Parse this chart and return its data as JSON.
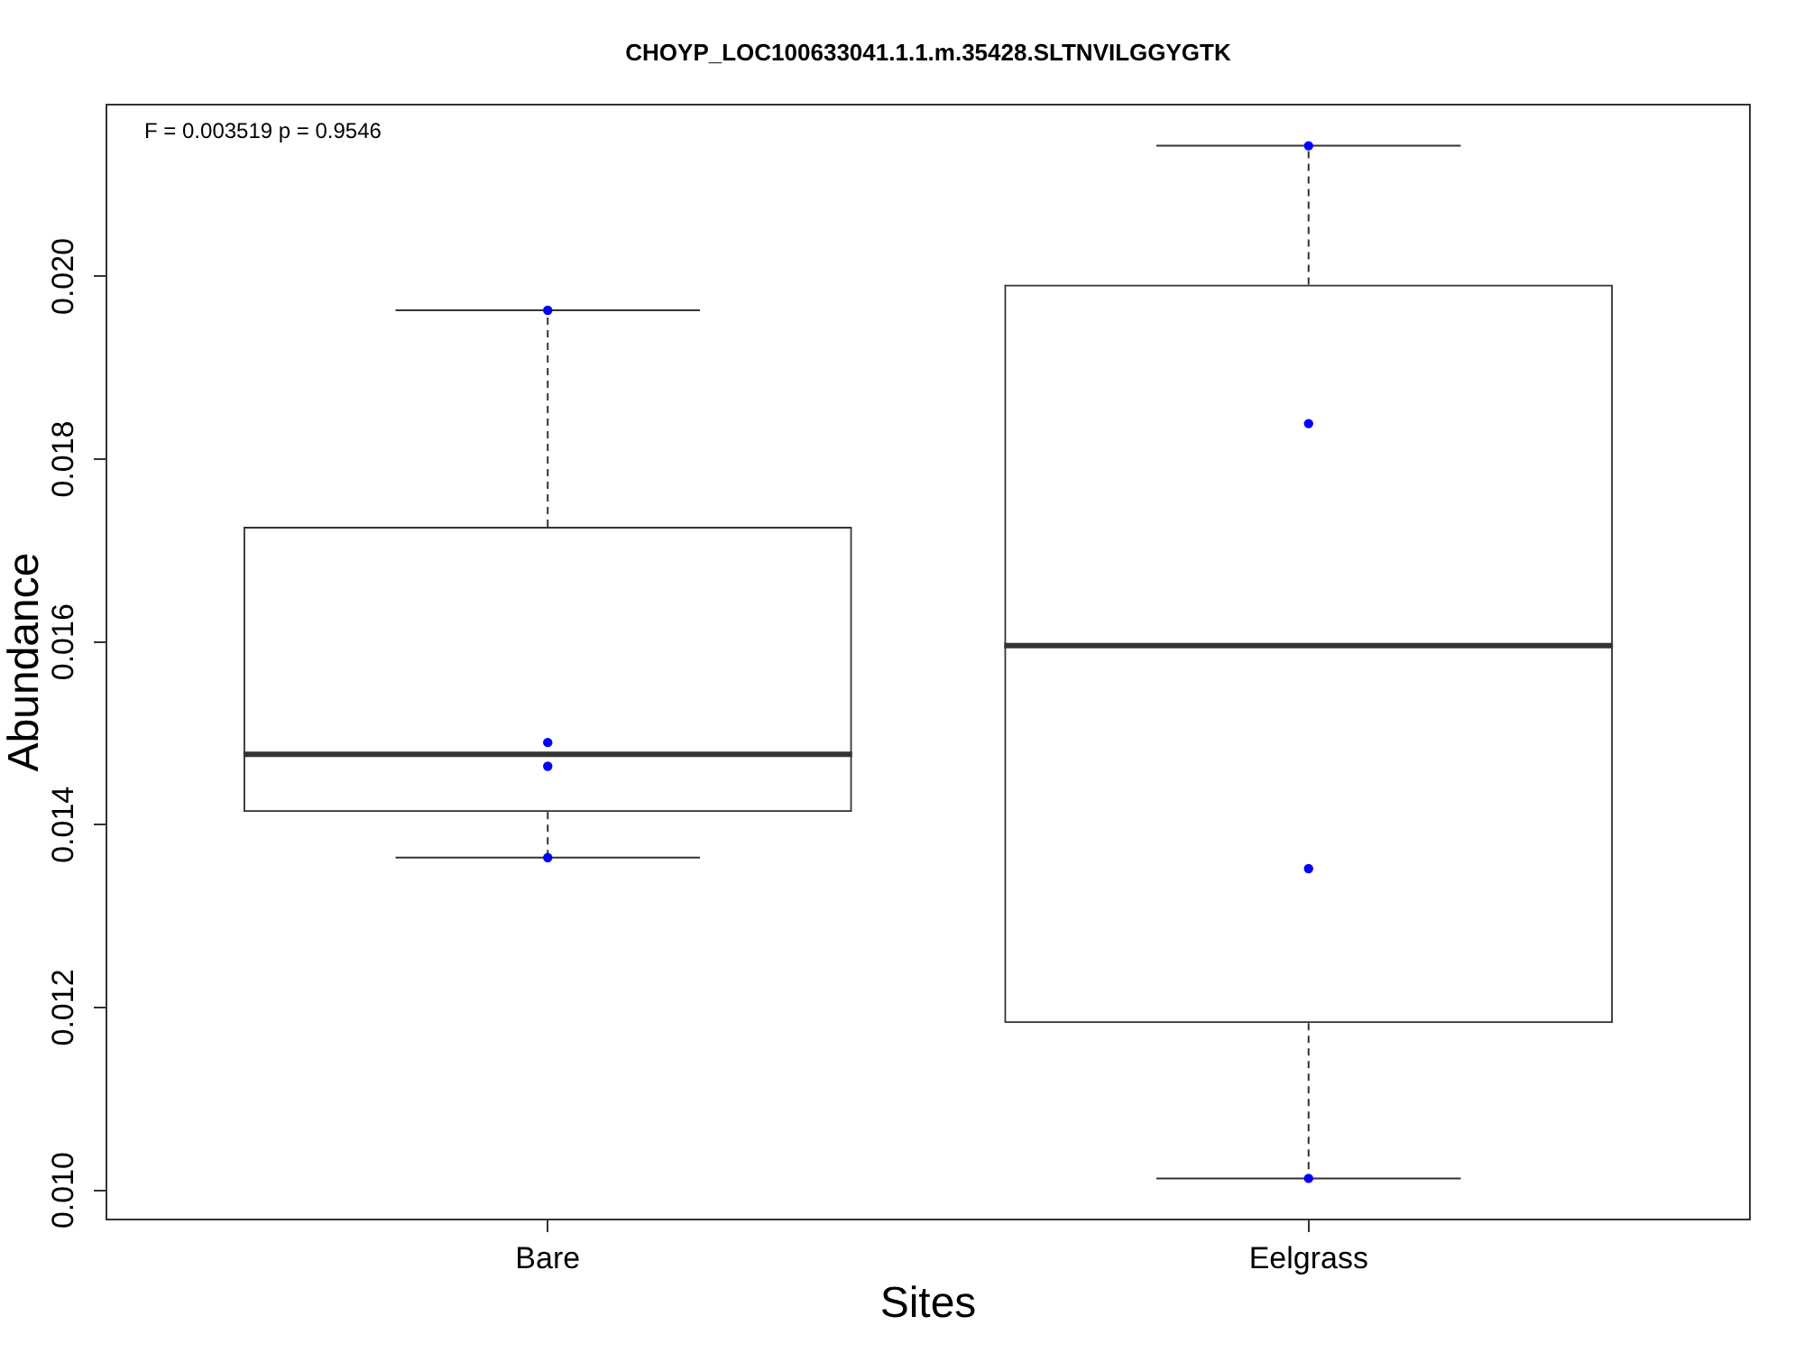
{
  "chart_data": {
    "type": "box",
    "title": "CHOYP_LOC100633041.1.1.m.35428.SLTNVILGGYGTK",
    "xlabel": "Sites",
    "ylabel": "Abundance",
    "annotations": [
      "F = 0.003519 p = 0.9546"
    ],
    "categories": [
      "Bare",
      "Eelgrass"
    ],
    "series": [
      {
        "color": "#333333",
        "boxes": [
          {
            "low": 0.01364,
            "q1": 0.01414,
            "median": 0.01477,
            "q3": 0.01726,
            "high": 0.01963
          },
          {
            "low": 0.01013,
            "q1": 0.01183,
            "median": 0.01596,
            "q3": 0.01991,
            "high": 0.02143
          }
        ]
      },
      {
        "type": "scatter",
        "color": "#0000ff",
        "x": [
          "Bare",
          "Bare",
          "Bare",
          "Bare",
          "Eelgrass",
          "Eelgrass",
          "Eelgrass",
          "Eelgrass"
        ],
        "values": [
          0.01963,
          0.0149,
          0.01464,
          0.01364,
          0.02143,
          0.01839,
          0.01352,
          0.01013
        ]
      }
    ],
    "ylim": [
      0.00968,
      0.02188
    ],
    "yticks": [
      {
        "value": 0.01,
        "label": "0.010"
      },
      {
        "value": 0.012,
        "label": "0.012"
      },
      {
        "value": 0.014,
        "label": "0.014"
      },
      {
        "value": 0.016,
        "label": "0.016"
      },
      {
        "value": 0.018,
        "label": "0.018"
      },
      {
        "value": 0.02,
        "label": "0.020"
      }
    ],
    "grid": false,
    "legend": false,
    "marker": "circle"
  }
}
